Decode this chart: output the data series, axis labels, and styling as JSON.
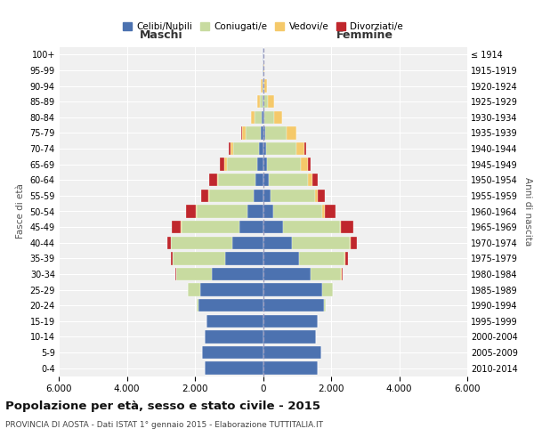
{
  "age_groups_bottom_to_top": [
    "0-4",
    "5-9",
    "10-14",
    "15-19",
    "20-24",
    "25-29",
    "30-34",
    "35-39",
    "40-44",
    "45-49",
    "50-54",
    "55-59",
    "60-64",
    "65-69",
    "70-74",
    "75-79",
    "80-84",
    "85-89",
    "90-94",
    "95-99",
    "100+"
  ],
  "birth_years_bottom_to_top": [
    "2010-2014",
    "2005-2009",
    "2000-2004",
    "1995-1999",
    "1990-1994",
    "1985-1989",
    "1980-1984",
    "1975-1979",
    "1970-1974",
    "1965-1969",
    "1960-1964",
    "1955-1959",
    "1950-1954",
    "1945-1949",
    "1940-1944",
    "1935-1939",
    "1930-1934",
    "1925-1929",
    "1920-1924",
    "1915-1919",
    "≤ 1914"
  ],
  "colors": {
    "celibi": "#4C72B0",
    "coniugati": "#C8DBA0",
    "vedovi": "#F5C96A",
    "divorziati": "#C0272D"
  },
  "males_celibi": [
    1700,
    1800,
    1700,
    1650,
    1900,
    1850,
    1500,
    1100,
    900,
    700,
    450,
    280,
    220,
    170,
    120,
    60,
    35,
    15,
    5,
    3,
    1
  ],
  "males_coniugati": [
    0,
    0,
    0,
    10,
    50,
    350,
    1050,
    1550,
    1800,
    1700,
    1500,
    1300,
    1100,
    900,
    750,
    450,
    220,
    80,
    20,
    4,
    0
  ],
  "males_vedovi": [
    0,
    0,
    0,
    0,
    0,
    5,
    5,
    5,
    8,
    10,
    15,
    20,
    30,
    55,
    75,
    110,
    90,
    65,
    30,
    8,
    1
  ],
  "males_divorziati": [
    0,
    0,
    0,
    0,
    5,
    5,
    20,
    60,
    110,
    280,
    300,
    220,
    220,
    130,
    55,
    20,
    10,
    5,
    0,
    0,
    0
  ],
  "females_celibi": [
    1600,
    1700,
    1550,
    1600,
    1780,
    1750,
    1400,
    1050,
    850,
    600,
    300,
    230,
    170,
    120,
    90,
    60,
    30,
    15,
    8,
    5,
    2
  ],
  "females_coniugati": [
    0,
    0,
    0,
    10,
    60,
    300,
    900,
    1350,
    1700,
    1650,
    1450,
    1300,
    1150,
    1000,
    880,
    620,
    300,
    120,
    25,
    5,
    0
  ],
  "females_vedovi": [
    0,
    0,
    0,
    0,
    0,
    5,
    5,
    8,
    15,
    35,
    70,
    90,
    140,
    190,
    240,
    290,
    230,
    180,
    90,
    30,
    5
  ],
  "females_divorziati": [
    0,
    0,
    0,
    0,
    5,
    10,
    30,
    90,
    200,
    370,
    310,
    210,
    160,
    100,
    50,
    20,
    8,
    4,
    3,
    0,
    0
  ],
  "title": "Popolazione per età, sesso e stato civile - 2015",
  "subtitle": "PROVINCIA DI AOSTA - Dati ISTAT 1° gennaio 2015 - Elaborazione TUTTITALIA.IT",
  "xlim": 6000,
  "background_color": "#ffffff",
  "plot_bg_color": "#f0f0f0",
  "grid_color": "#ffffff",
  "legend_labels": [
    "Celibi/Nubili",
    "Coniugati/e",
    "Vedovi/e",
    "Divorziati/e"
  ]
}
